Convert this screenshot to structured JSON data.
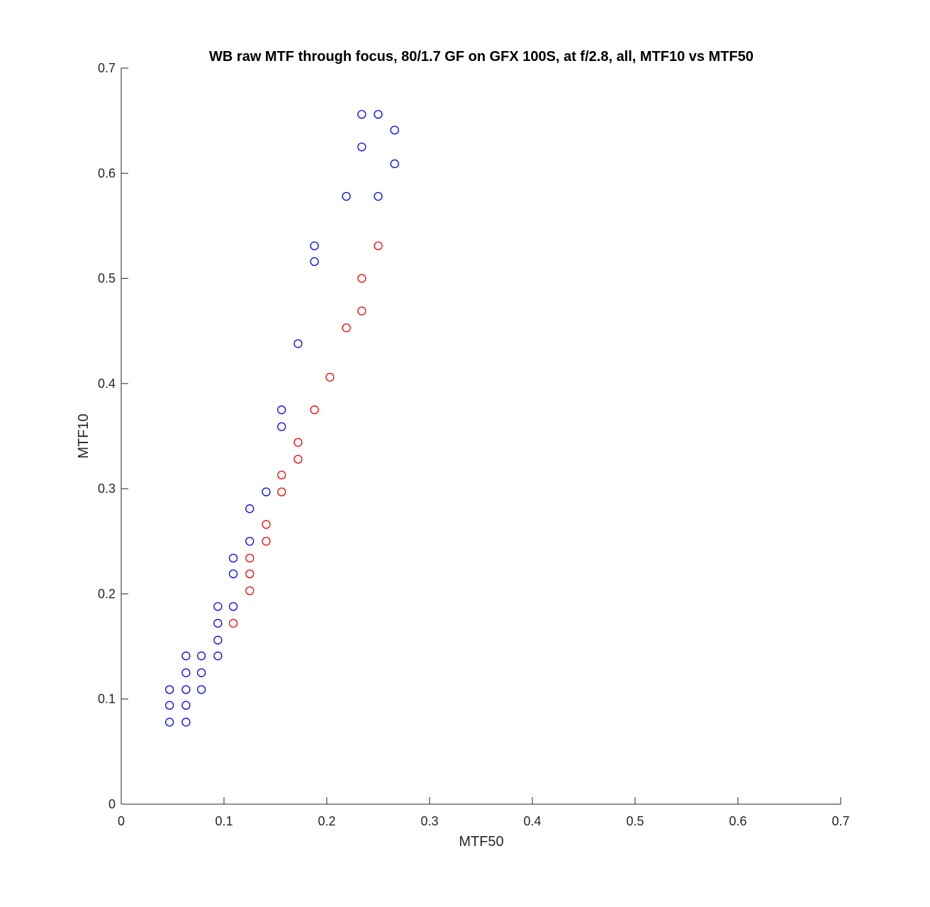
{
  "chart_data": {
    "type": "scatter",
    "title": "WB raw MTF through focus, 80/1.7 GF on GFX 100S, at f/2.8, all, MTF10 vs MTF50",
    "xlabel": "MTF50",
    "ylabel": "MTF10",
    "xlim": [
      0,
      0.7
    ],
    "ylim": [
      0,
      0.7
    ],
    "xticks": [
      "0",
      "0.1",
      "0.2",
      "0.3",
      "0.4",
      "0.5",
      "0.6",
      "0.7"
    ],
    "yticks": [
      "0",
      "0.1",
      "0.2",
      "0.3",
      "0.4",
      "0.5",
      "0.6",
      "0.7"
    ],
    "grid": false,
    "marker": "open circle",
    "series": [
      {
        "color": "#0000ff",
        "points": [
          [
            0.047,
            0.078
          ],
          [
            0.047,
            0.094
          ],
          [
            0.047,
            0.109
          ],
          [
            0.063,
            0.078
          ],
          [
            0.063,
            0.094
          ],
          [
            0.063,
            0.109
          ],
          [
            0.063,
            0.125
          ],
          [
            0.063,
            0.141
          ],
          [
            0.078,
            0.109
          ],
          [
            0.078,
            0.125
          ],
          [
            0.078,
            0.141
          ],
          [
            0.094,
            0.141
          ],
          [
            0.094,
            0.156
          ],
          [
            0.094,
            0.172
          ],
          [
            0.094,
            0.188
          ],
          [
            0.109,
            0.188
          ],
          [
            0.109,
            0.219
          ],
          [
            0.109,
            0.234
          ],
          [
            0.125,
            0.25
          ],
          [
            0.125,
            0.281
          ],
          [
            0.141,
            0.297
          ],
          [
            0.156,
            0.359
          ],
          [
            0.156,
            0.375
          ],
          [
            0.172,
            0.438
          ],
          [
            0.188,
            0.516
          ],
          [
            0.188,
            0.531
          ],
          [
            0.219,
            0.578
          ],
          [
            0.234,
            0.625
          ],
          [
            0.234,
            0.656
          ],
          [
            0.25,
            0.578
          ],
          [
            0.25,
            0.656
          ],
          [
            0.266,
            0.609
          ],
          [
            0.266,
            0.641
          ]
        ]
      },
      {
        "color": "#ff0000",
        "points": [
          [
            0.109,
            0.172
          ],
          [
            0.125,
            0.203
          ],
          [
            0.125,
            0.219
          ],
          [
            0.125,
            0.234
          ],
          [
            0.141,
            0.25
          ],
          [
            0.141,
            0.266
          ],
          [
            0.156,
            0.297
          ],
          [
            0.156,
            0.313
          ],
          [
            0.172,
            0.328
          ],
          [
            0.172,
            0.344
          ],
          [
            0.188,
            0.375
          ],
          [
            0.203,
            0.406
          ],
          [
            0.219,
            0.453
          ],
          [
            0.234,
            0.469
          ],
          [
            0.234,
            0.5
          ],
          [
            0.25,
            0.531
          ]
        ]
      }
    ]
  }
}
